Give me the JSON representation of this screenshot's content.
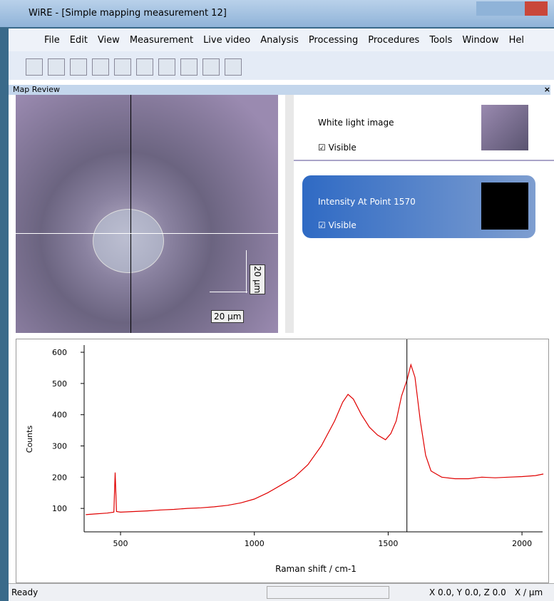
{
  "window_title": "WiRE - [Simple mapping measurement 12]",
  "menu": [
    "File",
    "Edit",
    "View",
    "Measurement",
    "Live video",
    "Analysis",
    "Processing",
    "Procedures",
    "Tools",
    "Window",
    "Hel"
  ],
  "panel_title": "Map Review",
  "layers": [
    {
      "label": "White light image",
      "visible": "Visible"
    },
    {
      "label": "Intensity At Point 1570",
      "visible": "Visible"
    }
  ],
  "scale_bars": [
    "20 µm",
    "20 µm"
  ],
  "chart_data": {
    "type": "line",
    "y_label": "Counts",
    "x_label": "Raman shift / cm-1",
    "x": [
      370,
      400,
      450,
      475,
      480,
      485,
      500,
      550,
      600,
      650,
      700,
      750,
      800,
      850,
      900,
      950,
      1000,
      1050,
      1100,
      1150,
      1200,
      1250,
      1300,
      1330,
      1350,
      1370,
      1400,
      1430,
      1460,
      1490,
      1510,
      1530,
      1550,
      1570,
      1585,
      1600,
      1620,
      1640,
      1660,
      1700,
      1750,
      1800,
      1850,
      1900,
      1950,
      2000,
      2050,
      2080
    ],
    "series": [
      {
        "color": "#e00000",
        "values": [
          80,
          82,
          85,
          88,
          215,
          90,
          88,
          90,
          92,
          95,
          97,
          100,
          102,
          105,
          110,
          118,
          130,
          150,
          175,
          200,
          240,
          300,
          380,
          440,
          465,
          450,
          400,
          360,
          335,
          320,
          340,
          380,
          460,
          510,
          560,
          520,
          380,
          270,
          220,
          200,
          195,
          195,
          200,
          198,
          200,
          202,
          205,
          210
        ]
      }
    ],
    "xlim": [
      364,
      2077
    ],
    "ylim": [
      25,
      623
    ],
    "xticks": [
      500,
      1000,
      1500,
      2000
    ],
    "yticks": [
      100,
      200,
      300,
      400,
      500,
      600
    ],
    "marker_x": 1570
  },
  "status": {
    "left": "Ready",
    "coords": "X 0.0, Y 0.0, Z 0.0",
    "units": "X / µm"
  }
}
